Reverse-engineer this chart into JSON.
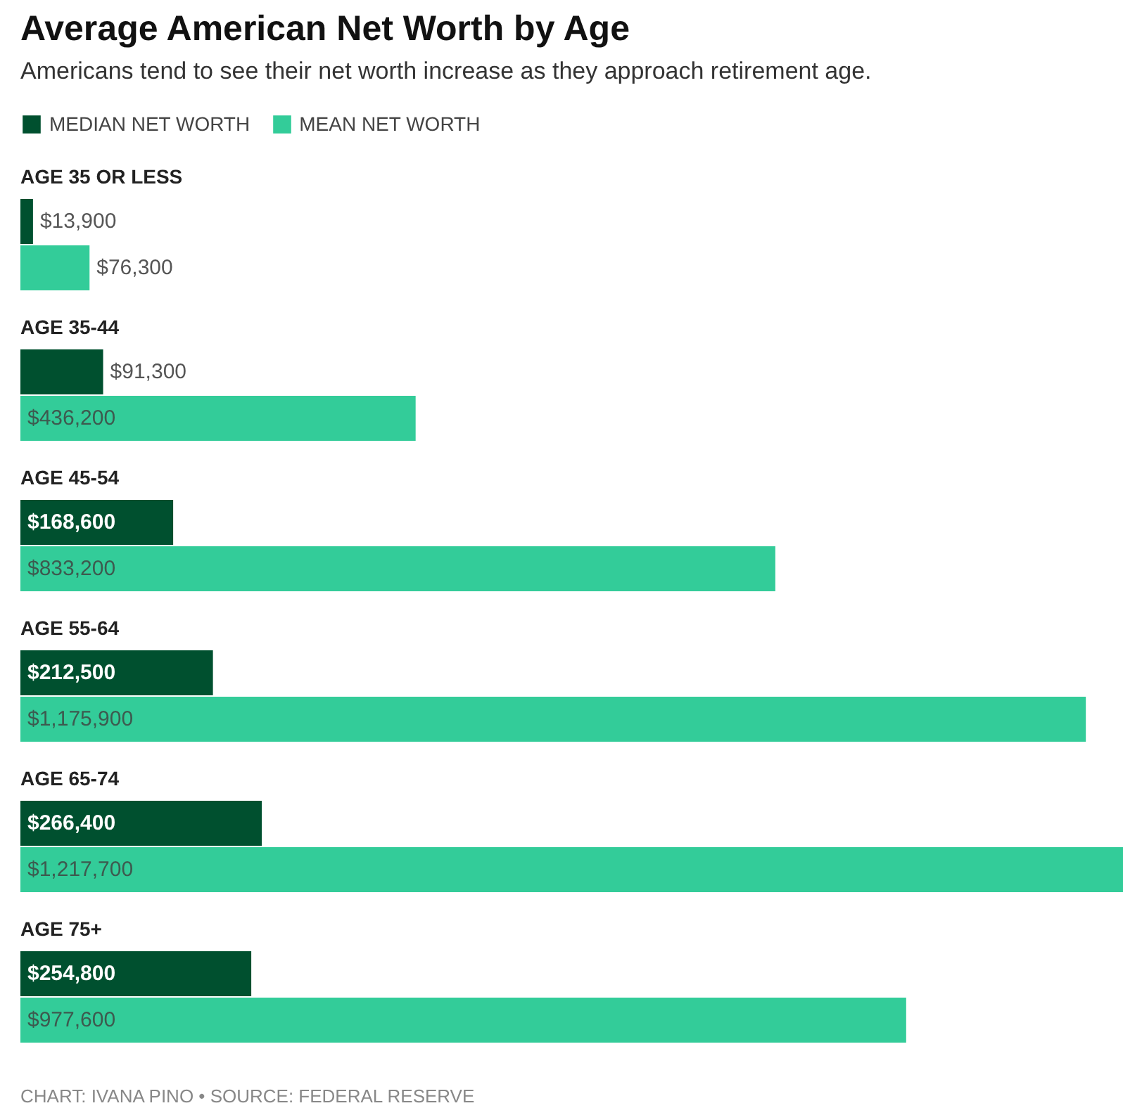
{
  "chart_data": {
    "type": "bar",
    "orientation": "horizontal",
    "title": "Average American Net Worth by Age",
    "subtitle": "Americans tend to see their net worth increase as they approach retirement age.",
    "categories": [
      "AGE 35 OR LESS",
      "AGE 35-44",
      "AGE 45-54",
      "AGE 55-64",
      "AGE 65-74",
      "AGE 75+"
    ],
    "series": [
      {
        "name": "MEDIAN NET WORTH",
        "color": "#00502f",
        "values": [
          13900,
          91300,
          168600,
          212500,
          266400,
          254800
        ],
        "value_labels": [
          "$13,900",
          "$91,300",
          "$168,600",
          "$212,500",
          "$266,400",
          "$254,800"
        ]
      },
      {
        "name": "MEAN NET WORTH",
        "color": "#33cc99",
        "values": [
          76300,
          436200,
          833200,
          1175900,
          1217700,
          977600
        ],
        "value_labels": [
          "$76,300",
          "$436,200",
          "$833,200",
          "$1,175,900",
          "$1,217,700",
          "$977,600"
        ]
      }
    ],
    "legend": "top left",
    "annotations": [
      "CHART: IVANA PINO • SOURCE: FEDERAL RESERVE"
    ]
  }
}
